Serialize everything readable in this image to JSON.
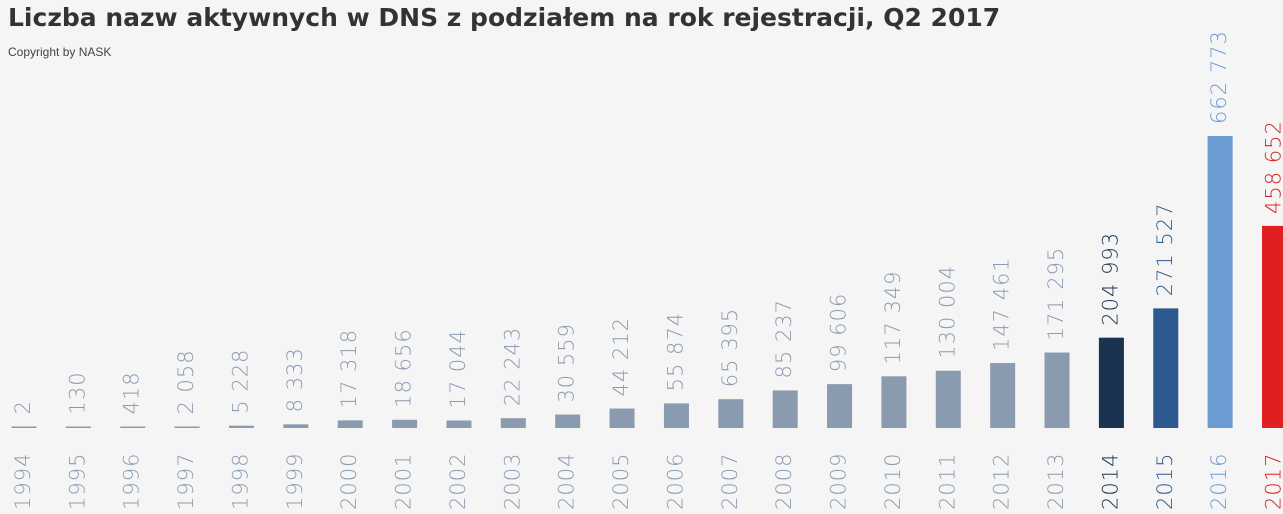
{
  "chart_data": {
    "type": "bar",
    "title": "Liczba nazw aktywnych w DNS z podziałem na rok rejestracji, Q2 2017",
    "subtitle": "Copyright by NASK",
    "categories": [
      "1994",
      "1995",
      "1996",
      "1997",
      "1998",
      "1999",
      "2000",
      "2001",
      "2002",
      "2003",
      "2004",
      "2005",
      "2006",
      "2007",
      "2008",
      "2009",
      "2010",
      "2011",
      "2012",
      "2013",
      "2014",
      "2015",
      "2016",
      "2017"
    ],
    "values": [
      2,
      130,
      418,
      2058,
      5228,
      8333,
      17318,
      18656,
      17044,
      22243,
      30559,
      44212,
      55874,
      65395,
      85237,
      99606,
      117349,
      130004,
      147461,
      171295,
      204993,
      271527,
      662773,
      458652
    ],
    "value_labels": [
      "2",
      "130",
      "418",
      "2 058",
      "5 228",
      "8 333",
      "17 318",
      "18 656",
      "17 044",
      "22 243",
      "30 559",
      "44 212",
      "55 874",
      "65 395",
      "85 237",
      "99 606",
      "117 349",
      "130 004",
      "147 461",
      "171 295",
      "204 993",
      "271 527",
      "662 773",
      "458 652"
    ],
    "colors": [
      "#8a9bb0",
      "#8a9bb0",
      "#8a9bb0",
      "#8a9bb0",
      "#8a9bb0",
      "#8a9bb0",
      "#8a9bb0",
      "#8a9bb0",
      "#8a9bb0",
      "#8a9bb0",
      "#8a9bb0",
      "#8a9bb0",
      "#8a9bb0",
      "#8a9bb0",
      "#8a9bb0",
      "#8a9bb0",
      "#8a9bb0",
      "#8a9bb0",
      "#8a9bb0",
      "#8a9bb0",
      "#1b3250",
      "#2d5a8e",
      "#6b9bd2",
      "#e02020"
    ]
  }
}
